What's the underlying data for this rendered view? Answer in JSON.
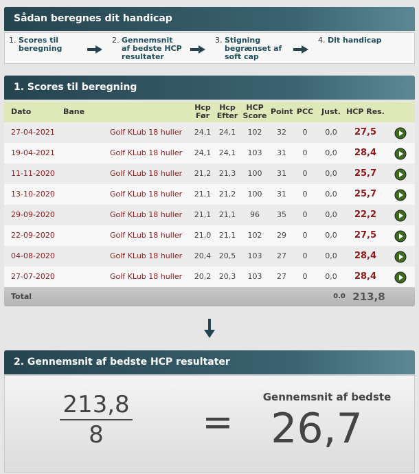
{
  "steps_panel": {
    "title": "Sådan beregnes dit handicap",
    "steps": [
      {
        "number": "1.",
        "label": "Scores til beregning"
      },
      {
        "number": "2.",
        "label": "Gennemsnit af bedste HCP resultater"
      },
      {
        "number": "3.",
        "label": "Stigning begrænset af soft cap"
      },
      {
        "number": "4.",
        "label": "Dit handicap"
      }
    ]
  },
  "scores": {
    "title": "1. Scores til beregning",
    "columns": [
      "Dato",
      "Bane",
      "Hcp Før",
      "Hcp Efter",
      "HCP Score",
      "Point",
      "PCC",
      "Just.",
      "HCP Res."
    ],
    "rows": [
      [
        "27-04-2021",
        "Golf KLub 18 huller",
        "24,1",
        "24,1",
        "102",
        "32",
        "0",
        "0,0",
        "27,5"
      ],
      [
        "19-04-2021",
        "Golf KLub 18 huller",
        "24,1",
        "24,1",
        "103",
        "31",
        "0",
        "0,0",
        "28,4"
      ],
      [
        "11-11-2020",
        "Golf KLub 18 huller",
        "21,2",
        "21,3",
        "100",
        "31",
        "0",
        "0,0",
        "25,7"
      ],
      [
        "13-10-2020",
        "Golf KLub 18 huller",
        "21,1",
        "21,2",
        "100",
        "31",
        "0",
        "0,0",
        "25,7"
      ],
      [
        "29-09-2020",
        "Golf KLub 18 huller",
        "21,1",
        "21,1",
        "96",
        "35",
        "0",
        "0,0",
        "22,2"
      ],
      [
        "22-09-2020",
        "Golf KLub 18 huller",
        "21,0",
        "21,1",
        "102",
        "29",
        "0",
        "0,0",
        "27,5"
      ],
      [
        "04-08-2020",
        "Golf KLub 18 huller",
        "20,4",
        "20,5",
        "103",
        "27",
        "0",
        "0,0",
        "28,4"
      ],
      [
        "27-07-2020",
        "Golf KLub 18 huller",
        "20,2",
        "20,3",
        "103",
        "27",
        "0",
        "0,0",
        "28,4"
      ]
    ],
    "total": {
      "label": "Total",
      "just": "0.0",
      "hcp_res": "213,8"
    }
  },
  "average": {
    "title": "2. Gennemsnit af bedste HCP resultater",
    "numerator": "213,8",
    "denominator": "8",
    "operator": "=",
    "result_label": "Gennemsnit af bedste",
    "result": "26,7"
  }
}
